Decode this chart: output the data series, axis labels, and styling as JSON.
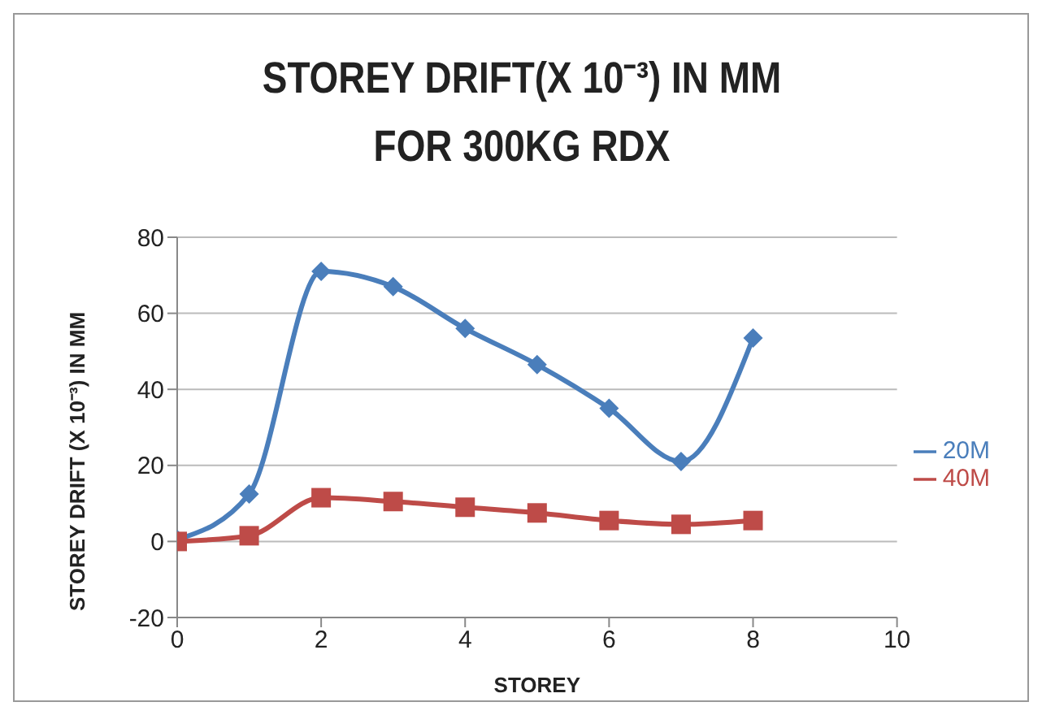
{
  "chart_data": {
    "type": "line",
    "title": "STOREY DRIFT(X 10⁻³) IN MM FOR 300KG RDX",
    "xlabel": "STOREY",
    "ylabel": "STOREY DRIFT (X 10⁻³) IN MM",
    "x": [
      0,
      1,
      2,
      3,
      4,
      5,
      6,
      7,
      8
    ],
    "series": [
      {
        "name": "20M",
        "color": "#4a7ebb",
        "marker": "diamond",
        "values": [
          0.5,
          12.5,
          71,
          67,
          56,
          46.5,
          35,
          21,
          53.5
        ]
      },
      {
        "name": "40M",
        "color": "#be4b48",
        "marker": "square",
        "values": [
          0,
          1.5,
          11.5,
          10.5,
          9,
          7.5,
          5.5,
          4.5,
          5.5
        ]
      }
    ],
    "xlim": [
      0,
      10
    ],
    "xticks": [
      0,
      2,
      4,
      6,
      8,
      10
    ],
    "ylim": [
      -20,
      80
    ],
    "yticks": [
      -20,
      0,
      20,
      40,
      60,
      80
    ],
    "grid": "y",
    "legend": "right"
  }
}
